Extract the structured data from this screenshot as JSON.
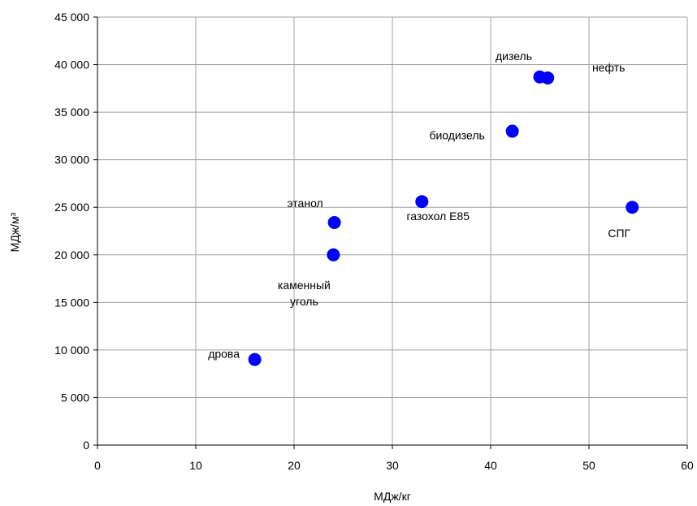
{
  "chart_data": {
    "type": "scatter",
    "xlabel": "МДж/кг",
    "ylabel": "МДж/м³",
    "xlim": [
      0,
      60
    ],
    "ylim": [
      0,
      45000
    ],
    "xticks": [
      "0",
      "10",
      "20",
      "30",
      "40",
      "50",
      "60"
    ],
    "yticks": [
      "0",
      "5 000",
      "10 000",
      "15 000",
      "20 000",
      "25 000",
      "30 000",
      "35 000",
      "40 000",
      "45 000"
    ],
    "grid": true,
    "marker_color": "#0000ff",
    "points": [
      {
        "label": "дрова",
        "x": 16,
        "y": 9000
      },
      {
        "label": "каменный уголь",
        "x": 24,
        "y": 20000
      },
      {
        "label": "этанол",
        "x": 24.1,
        "y": 23400
      },
      {
        "label": "газохол E85",
        "x": 33,
        "y": 25600
      },
      {
        "label": "биодизель",
        "x": 42.2,
        "y": 33000
      },
      {
        "label": "дизель",
        "x": 45,
        "y": 38700
      },
      {
        "label": "нефть",
        "x": 45.8,
        "y": 38600
      },
      {
        "label": "СПГ",
        "x": 54.4,
        "y": 25000
      }
    ]
  }
}
